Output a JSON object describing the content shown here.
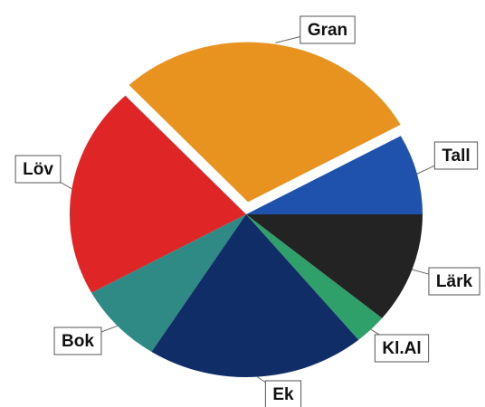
{
  "chart_data": {
    "type": "pie",
    "categories": [
      "Tall",
      "Gran",
      "Löv",
      "Bok",
      "Ek",
      "Kl.Al",
      "Lärk"
    ],
    "values": [
      8,
      29,
      21,
      8,
      20,
      3,
      11
    ],
    "colors": [
      "#1f52ad",
      "#e8921f",
      "#e02526",
      "#2f8a85",
      "#102d68",
      "#2fa06a",
      "#232323"
    ],
    "exploded": "Gran"
  }
}
